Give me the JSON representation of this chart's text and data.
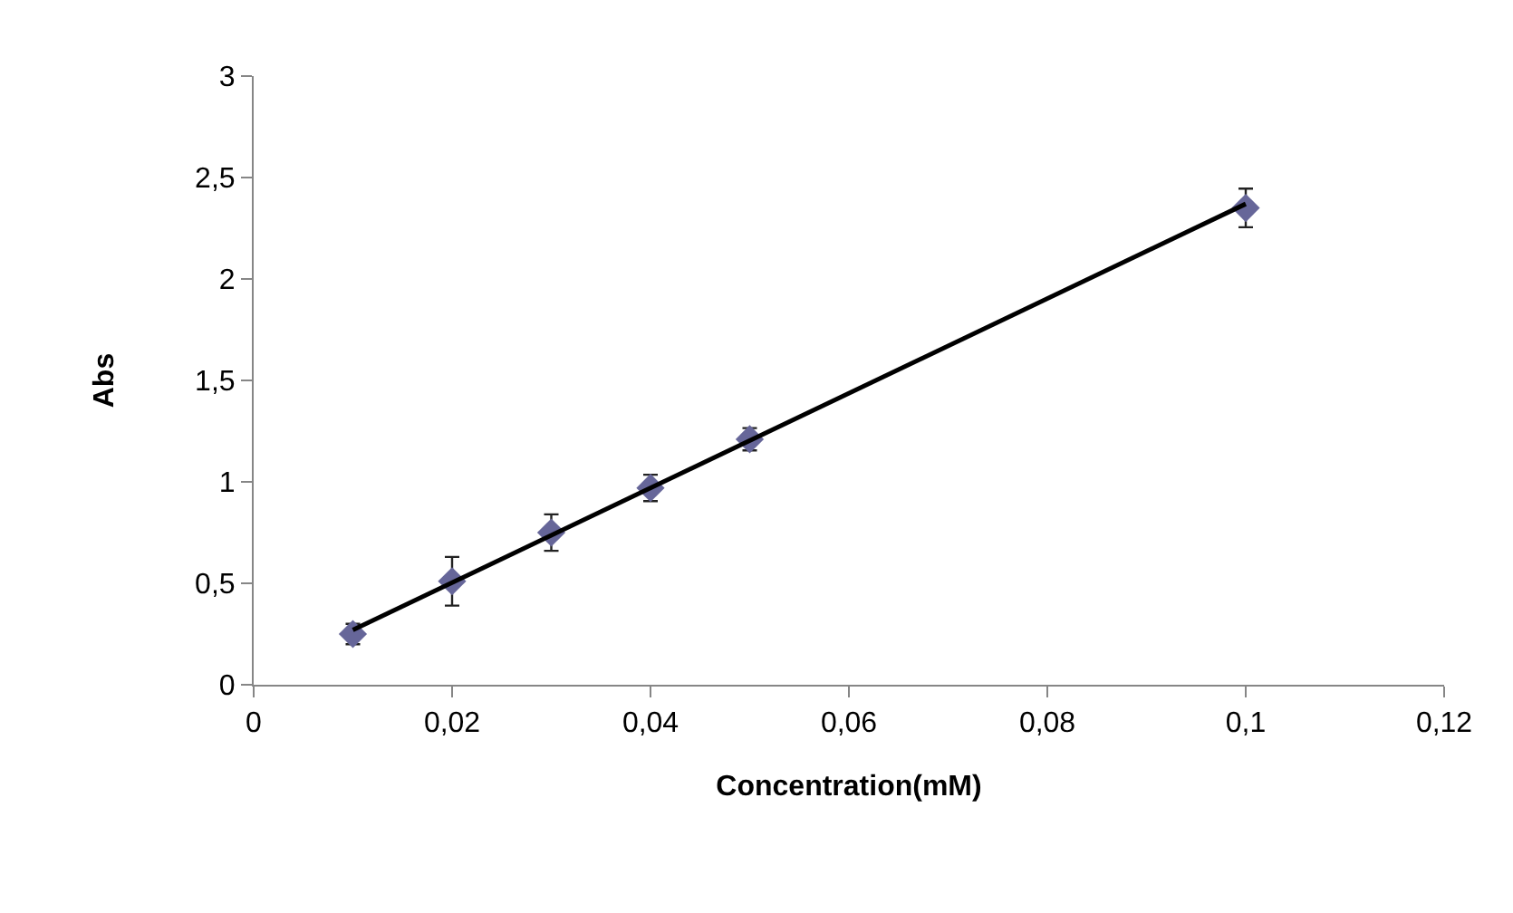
{
  "chart_data": {
    "type": "scatter",
    "xlabel": "Concentration(mM)",
    "ylabel": "Abs",
    "series": [
      {
        "color": "#666699",
        "marker": "diamond",
        "x": [
          0.01,
          0.02,
          0.03,
          0.04,
          0.05,
          0.1
        ],
        "values": [
          0.25,
          0.51,
          0.75,
          0.97,
          1.21,
          2.35
        ],
        "errors": [
          0.05,
          0.12,
          0.09,
          0.065,
          0.055,
          0.095
        ]
      },
      {
        "type": "line",
        "color": "#000000",
        "marker": "none",
        "line_style": "solid",
        "x": [
          0.01,
          0.1
        ],
        "values": [
          0.27,
          2.37
        ]
      }
    ],
    "xlim": [
      0,
      0.12
    ],
    "xticks": [
      {
        "value": 0,
        "label": "0"
      },
      {
        "value": 0.02,
        "label": "0,02"
      },
      {
        "value": 0.04,
        "label": "0,04"
      },
      {
        "value": 0.06,
        "label": "0,06"
      },
      {
        "value": 0.08,
        "label": "0,08"
      },
      {
        "value": 0.1,
        "label": "0,1"
      },
      {
        "value": 0.12,
        "label": "0,12"
      }
    ],
    "ylim": [
      0,
      3
    ],
    "yticks": [
      {
        "value": 0,
        "label": "0"
      },
      {
        "value": 0.5,
        "label": "0,5"
      },
      {
        "value": 1,
        "label": "1"
      },
      {
        "value": 1.5,
        "label": "1,5"
      },
      {
        "value": 2,
        "label": "2"
      },
      {
        "value": 2.5,
        "label": "2,5"
      },
      {
        "value": 3,
        "label": "3"
      }
    ]
  }
}
